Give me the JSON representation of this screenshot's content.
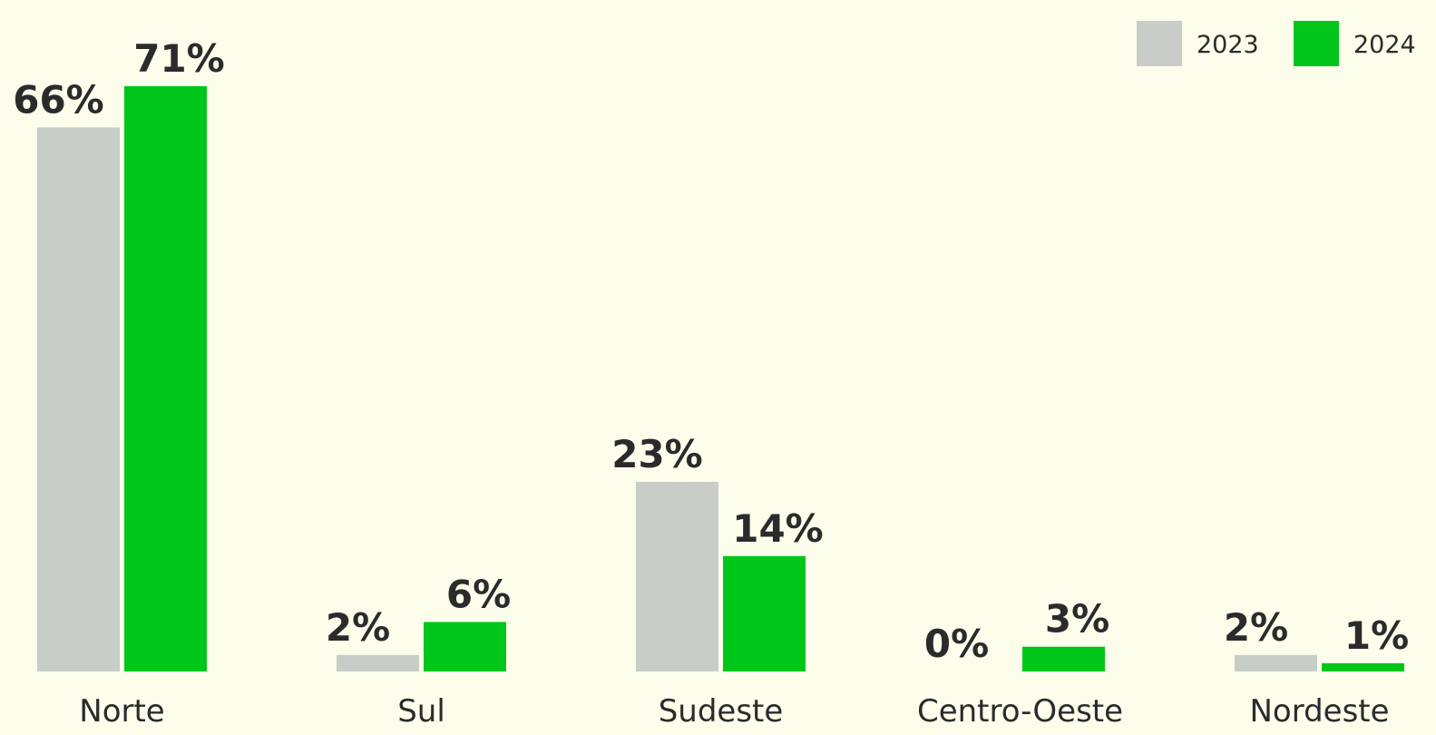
{
  "chart_data": {
    "type": "bar",
    "categories": [
      "Norte",
      "Sul",
      "Sudeste",
      "Centro-Oeste",
      "Nordeste"
    ],
    "series": [
      {
        "name": "2023",
        "color": "#c8cec7",
        "values": [
          66,
          2,
          23,
          0,
          2
        ],
        "value_labels": [
          "66%",
          "2%",
          "23%",
          "0%",
          "2%"
        ]
      },
      {
        "name": "2024",
        "color": "#00c61a",
        "values": [
          71,
          6,
          14,
          3,
          1
        ],
        "value_labels": [
          "71%",
          "6%",
          "14%",
          "3%",
          "1%"
        ]
      }
    ],
    "legend": "top-right"
  }
}
